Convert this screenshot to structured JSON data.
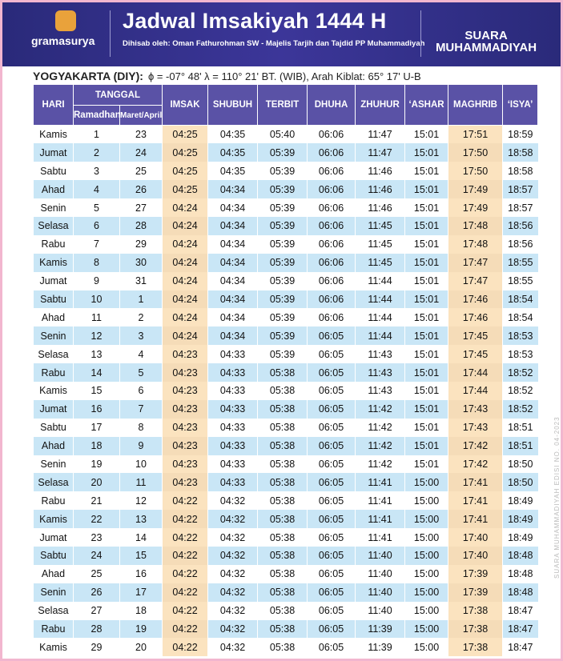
{
  "header": {
    "logo": "gramasurya",
    "title": "Jadwal Imsakiyah 1444 H",
    "subtitle": "Dihisab oleh: Oman Fathurohman SW - Majelis Tarjih dan Tajdid PP Muhammadiyah",
    "brand": "SUARA MUHAMMADIYAH"
  },
  "location": {
    "city": "YOGYAKARTA (DIY):",
    "coords": "ϕ = -07° 48'  λ = 110° 21'  BT. (WIB), Arah Kiblat: 65° 17'  U-B"
  },
  "table": {
    "columns": {
      "hari": "HARI",
      "tanggal": "TANGGAL",
      "ramadhan": "Ramadhan",
      "masehi": "Maret/April",
      "times": [
        "IMSAK",
        "SHUBUH",
        "TERBIT",
        "DHUHA",
        "ZHUHUR",
        "‘ASHAR",
        "MAGHRIB",
        "‘ISYA’"
      ]
    },
    "rows": [
      [
        "Kamis",
        "1",
        "23",
        "04:25",
        "04:35",
        "05:40",
        "06:06",
        "11:47",
        "15:01",
        "17:51",
        "18:59"
      ],
      [
        "Jumat",
        "2",
        "24",
        "04:25",
        "04:35",
        "05:39",
        "06:06",
        "11:47",
        "15:01",
        "17:50",
        "18:58"
      ],
      [
        "Sabtu",
        "3",
        "25",
        "04:25",
        "04:35",
        "05:39",
        "06:06",
        "11:46",
        "15:01",
        "17:50",
        "18:58"
      ],
      [
        "Ahad",
        "4",
        "26",
        "04:25",
        "04:34",
        "05:39",
        "06:06",
        "11:46",
        "15:01",
        "17:49",
        "18:57"
      ],
      [
        "Senin",
        "5",
        "27",
        "04:24",
        "04:34",
        "05:39",
        "06:06",
        "11:46",
        "15:01",
        "17:49",
        "18:57"
      ],
      [
        "Selasa",
        "6",
        "28",
        "04:24",
        "04:34",
        "05:39",
        "06:06",
        "11:45",
        "15:01",
        "17:48",
        "18:56"
      ],
      [
        "Rabu",
        "7",
        "29",
        "04:24",
        "04:34",
        "05:39",
        "06:06",
        "11:45",
        "15:01",
        "17:48",
        "18:56"
      ],
      [
        "Kamis",
        "8",
        "30",
        "04:24",
        "04:34",
        "05:39",
        "06:06",
        "11:45",
        "15:01",
        "17:47",
        "18:55"
      ],
      [
        "Jumat",
        "9",
        "31",
        "04:24",
        "04:34",
        "05:39",
        "06:06",
        "11:44",
        "15:01",
        "17:47",
        "18:55"
      ],
      [
        "Sabtu",
        "10",
        "1",
        "04:24",
        "04:34",
        "05:39",
        "06:06",
        "11:44",
        "15:01",
        "17:46",
        "18:54"
      ],
      [
        "Ahad",
        "11",
        "2",
        "04:24",
        "04:34",
        "05:39",
        "06:06",
        "11:44",
        "15:01",
        "17:46",
        "18:54"
      ],
      [
        "Senin",
        "12",
        "3",
        "04:24",
        "04:34",
        "05:39",
        "06:05",
        "11:44",
        "15:01",
        "17:45",
        "18:53"
      ],
      [
        "Selasa",
        "13",
        "4",
        "04:23",
        "04:33",
        "05:39",
        "06:05",
        "11:43",
        "15:01",
        "17:45",
        "18:53"
      ],
      [
        "Rabu",
        "14",
        "5",
        "04:23",
        "04:33",
        "05:38",
        "06:05",
        "11:43",
        "15:01",
        "17:44",
        "18:52"
      ],
      [
        "Kamis",
        "15",
        "6",
        "04:23",
        "04:33",
        "05:38",
        "06:05",
        "11:43",
        "15:01",
        "17:44",
        "18:52"
      ],
      [
        "Jumat",
        "16",
        "7",
        "04:23",
        "04:33",
        "05:38",
        "06:05",
        "11:42",
        "15:01",
        "17:43",
        "18:52"
      ],
      [
        "Sabtu",
        "17",
        "8",
        "04:23",
        "04:33",
        "05:38",
        "06:05",
        "11:42",
        "15:01",
        "17:43",
        "18:51"
      ],
      [
        "Ahad",
        "18",
        "9",
        "04:23",
        "04:33",
        "05:38",
        "06:05",
        "11:42",
        "15:01",
        "17:42",
        "18:51"
      ],
      [
        "Senin",
        "19",
        "10",
        "04:23",
        "04:33",
        "05:38",
        "06:05",
        "11:42",
        "15:01",
        "17:42",
        "18:50"
      ],
      [
        "Selasa",
        "20",
        "11",
        "04:23",
        "04:33",
        "05:38",
        "06:05",
        "11:41",
        "15:00",
        "17:41",
        "18:50"
      ],
      [
        "Rabu",
        "21",
        "12",
        "04:22",
        "04:32",
        "05:38",
        "06:05",
        "11:41",
        "15:00",
        "17:41",
        "18:49"
      ],
      [
        "Kamis",
        "22",
        "13",
        "04:22",
        "04:32",
        "05:38",
        "06:05",
        "11:41",
        "15:00",
        "17:41",
        "18:49"
      ],
      [
        "Jumat",
        "23",
        "14",
        "04:22",
        "04:32",
        "05:38",
        "06:05",
        "11:41",
        "15:00",
        "17:40",
        "18:49"
      ],
      [
        "Sabtu",
        "24",
        "15",
        "04:22",
        "04:32",
        "05:38",
        "06:05",
        "11:40",
        "15:00",
        "17:40",
        "18:48"
      ],
      [
        "Ahad",
        "25",
        "16",
        "04:22",
        "04:32",
        "05:38",
        "06:05",
        "11:40",
        "15:00",
        "17:39",
        "18:48"
      ],
      [
        "Senin",
        "26",
        "17",
        "04:22",
        "04:32",
        "05:38",
        "06:05",
        "11:40",
        "15:00",
        "17:39",
        "18:48"
      ],
      [
        "Selasa",
        "27",
        "18",
        "04:22",
        "04:32",
        "05:38",
        "06:05",
        "11:40",
        "15:00",
        "17:38",
        "18:47"
      ],
      [
        "Rabu",
        "28",
        "19",
        "04:22",
        "04:32",
        "05:38",
        "06:05",
        "11:39",
        "15:00",
        "17:38",
        "18:47"
      ],
      [
        "Kamis",
        "29",
        "20",
        "04:22",
        "04:32",
        "05:38",
        "06:05",
        "11:39",
        "15:00",
        "17:38",
        "18:47"
      ]
    ]
  },
  "side_note": "SUARA MUHAMMADIYAH EDISI NO. 04-2023"
}
